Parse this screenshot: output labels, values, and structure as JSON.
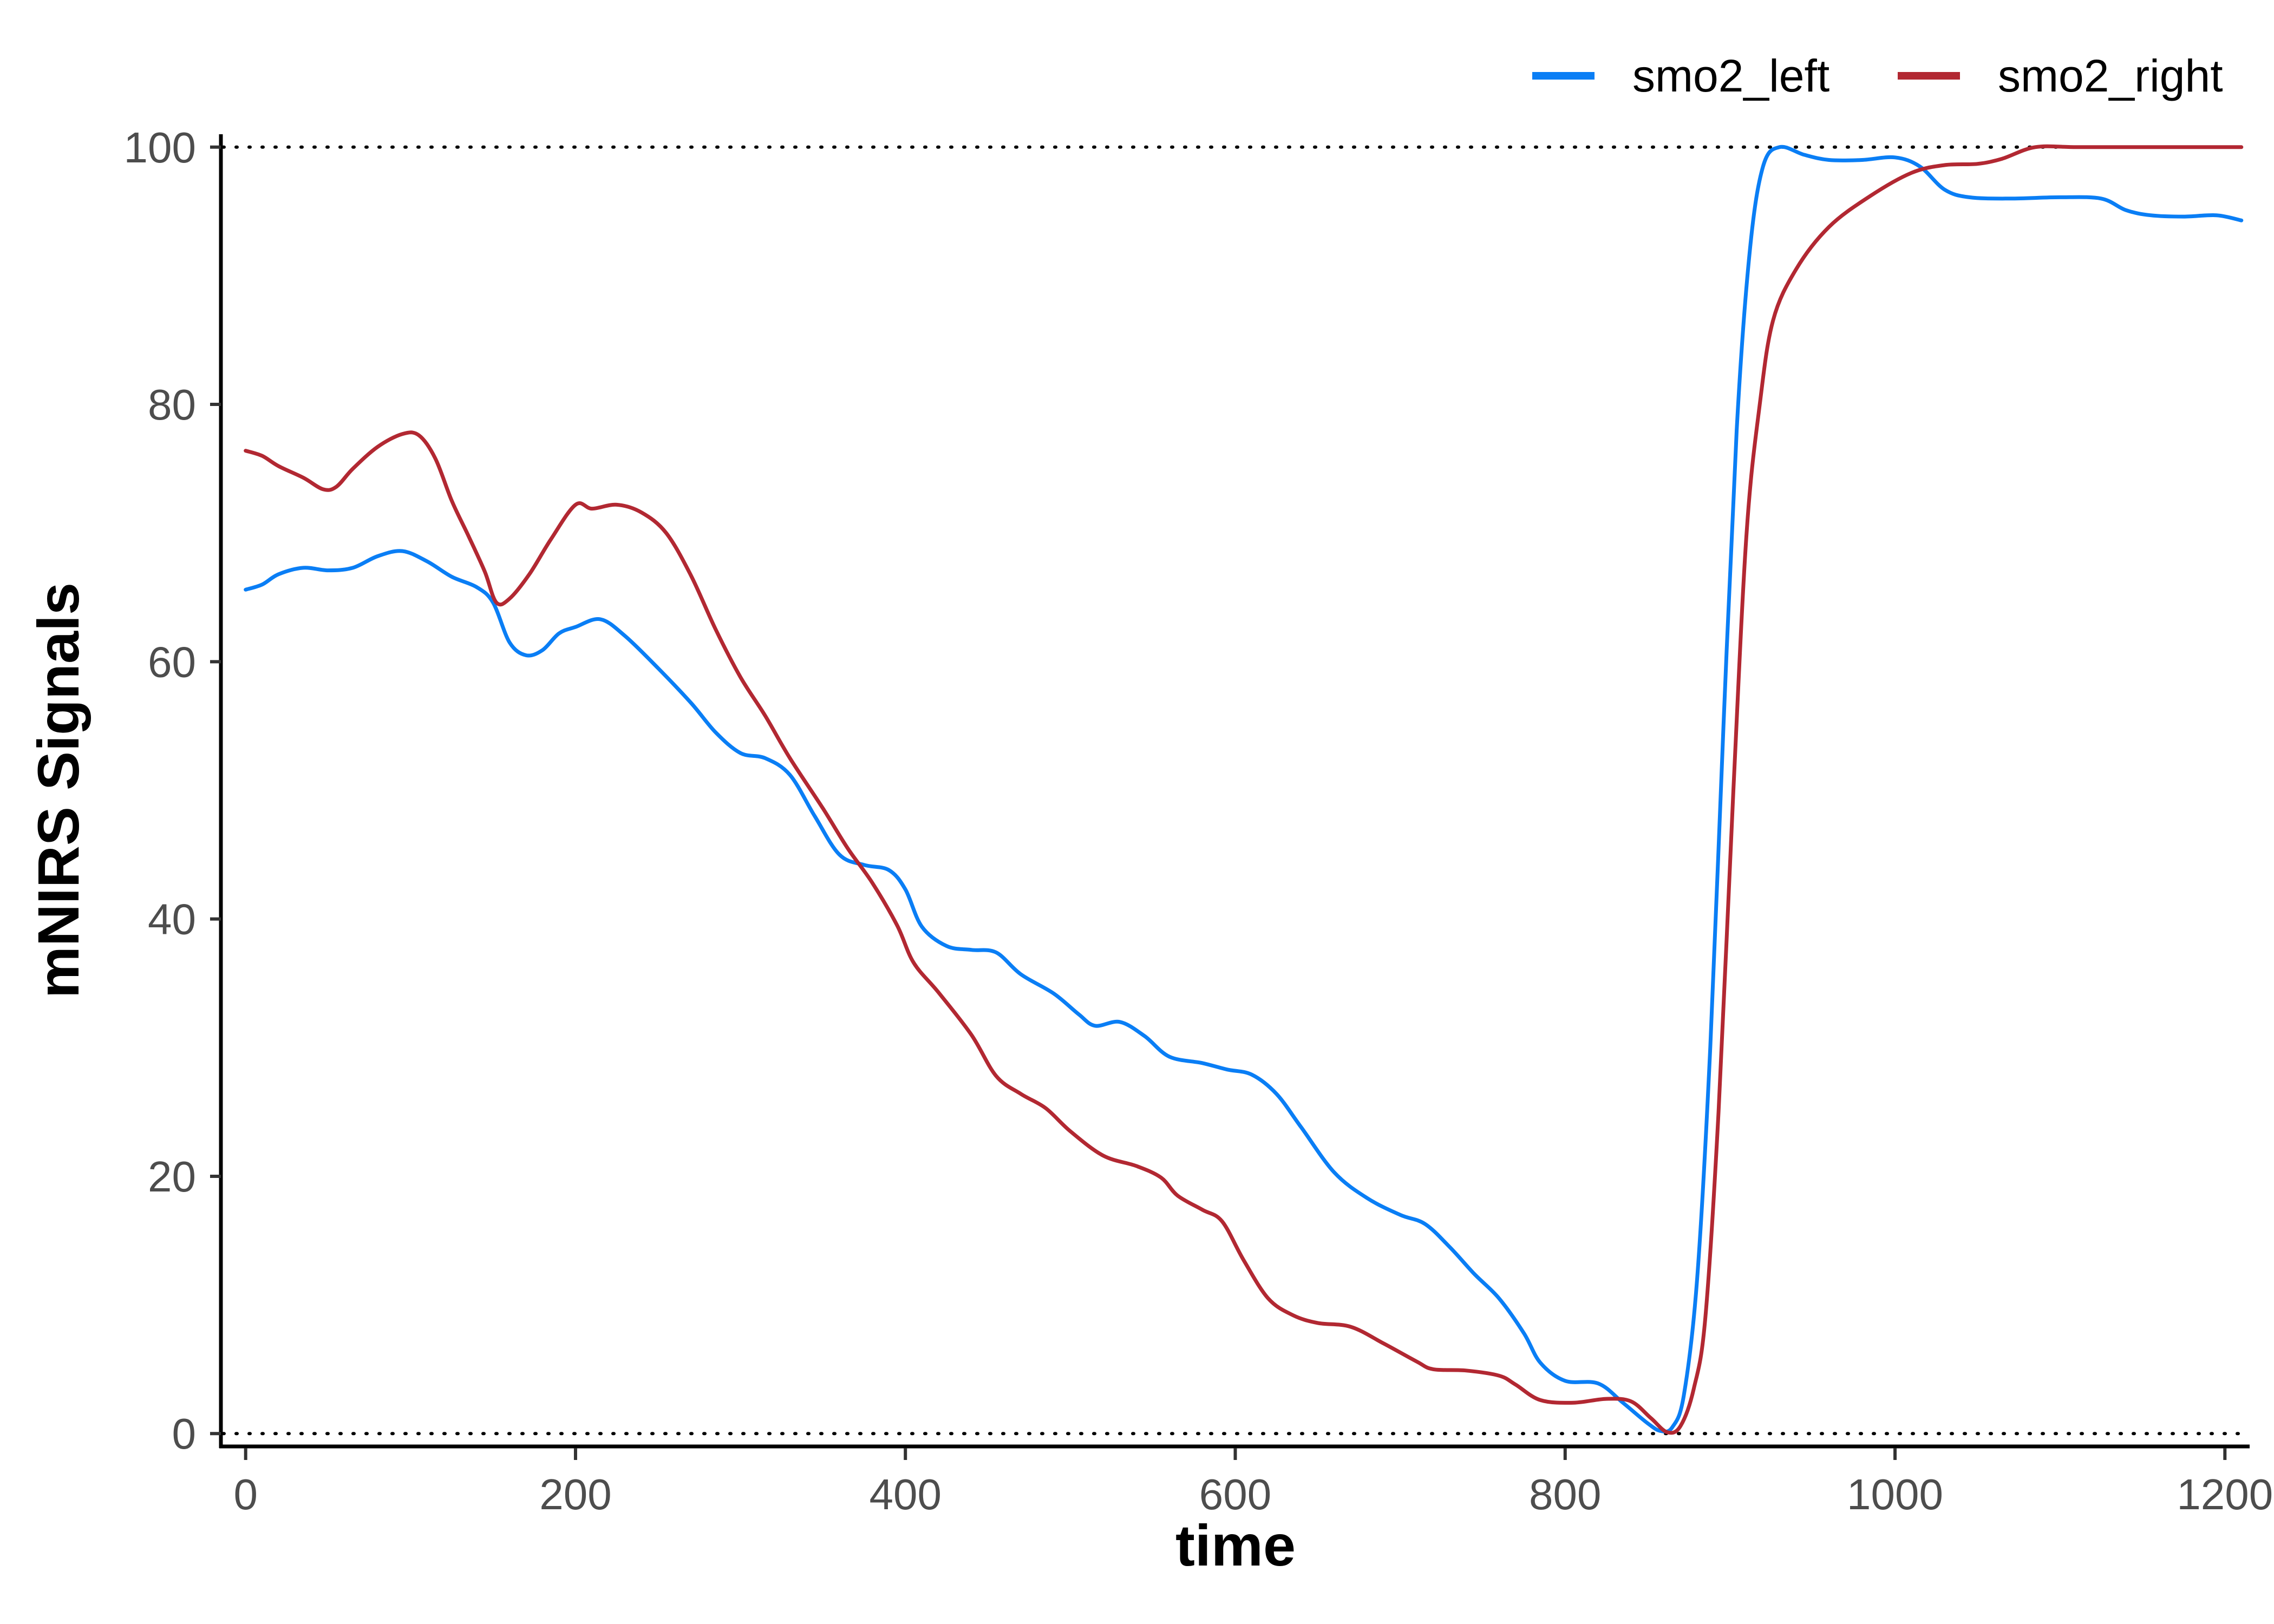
{
  "chart_data": {
    "type": "line",
    "xlabel": "time",
    "ylabel": "mNIRS Signals",
    "xlim": [
      -15,
      1215
    ],
    "ylim": [
      -1,
      101
    ],
    "x_ticks": [
      "0",
      "200",
      "400",
      "600",
      "800",
      "1000",
      "1200"
    ],
    "y_ticks": [
      "0",
      "20",
      "40",
      "60",
      "80",
      "100"
    ],
    "reference_lines": [
      0,
      100
    ],
    "reference_line_style": "dotted",
    "grid": false,
    "legend_position": "top-right",
    "series": [
      {
        "name": "smo2_left",
        "color": "#0a7ef5",
        "points": [
          [
            0,
            65.6
          ],
          [
            10,
            66.0
          ],
          [
            20,
            66.8
          ],
          [
            35,
            67.3
          ],
          [
            50,
            67.1
          ],
          [
            65,
            67.3
          ],
          [
            80,
            68.2
          ],
          [
            95,
            68.6
          ],
          [
            110,
            67.8
          ],
          [
            125,
            66.6
          ],
          [
            140,
            65.8
          ],
          [
            150,
            64.6
          ],
          [
            160,
            61.5
          ],
          [
            170,
            60.5
          ],
          [
            180,
            60.9
          ],
          [
            190,
            62.2
          ],
          [
            200,
            62.7
          ],
          [
            215,
            63.3
          ],
          [
            230,
            62.0
          ],
          [
            250,
            59.5
          ],
          [
            270,
            56.8
          ],
          [
            285,
            54.5
          ],
          [
            300,
            52.9
          ],
          [
            315,
            52.5
          ],
          [
            330,
            51.2
          ],
          [
            345,
            48.0
          ],
          [
            360,
            45.0
          ],
          [
            375,
            44.2
          ],
          [
            390,
            43.8
          ],
          [
            400,
            42.3
          ],
          [
            410,
            39.4
          ],
          [
            425,
            37.9
          ],
          [
            440,
            37.6
          ],
          [
            455,
            37.4
          ],
          [
            470,
            35.7
          ],
          [
            490,
            34.2
          ],
          [
            505,
            32.6
          ],
          [
            515,
            31.7
          ],
          [
            530,
            32.0
          ],
          [
            545,
            30.9
          ],
          [
            560,
            29.3
          ],
          [
            580,
            28.8
          ],
          [
            595,
            28.3
          ],
          [
            610,
            27.9
          ],
          [
            625,
            26.4
          ],
          [
            640,
            23.8
          ],
          [
            660,
            20.3
          ],
          [
            680,
            18.3
          ],
          [
            700,
            17.0
          ],
          [
            715,
            16.3
          ],
          [
            730,
            14.5
          ],
          [
            745,
            12.4
          ],
          [
            760,
            10.5
          ],
          [
            775,
            7.8
          ],
          [
            785,
            5.5
          ],
          [
            800,
            4.1
          ],
          [
            820,
            3.9
          ],
          [
            835,
            2.4
          ],
          [
            850,
            0.8
          ],
          [
            858,
            0.2
          ],
          [
            865,
            0.5
          ],
          [
            872,
            3.0
          ],
          [
            880,
            12.0
          ],
          [
            888,
            30.0
          ],
          [
            896,
            55.0
          ],
          [
            904,
            78.0
          ],
          [
            912,
            92.0
          ],
          [
            920,
            98.5
          ],
          [
            930,
            100.0
          ],
          [
            945,
            99.4
          ],
          [
            960,
            99.0
          ],
          [
            980,
            99.0
          ],
          [
            1000,
            99.2
          ],
          [
            1015,
            98.5
          ],
          [
            1030,
            96.7
          ],
          [
            1045,
            96.1
          ],
          [
            1070,
            96.0
          ],
          [
            1100,
            96.1
          ],
          [
            1125,
            96.0
          ],
          [
            1140,
            95.1
          ],
          [
            1155,
            94.7
          ],
          [
            1175,
            94.6
          ],
          [
            1195,
            94.7
          ],
          [
            1210,
            94.3
          ]
        ]
      },
      {
        "name": "smo2_right",
        "color": "#b22832",
        "points": [
          [
            0,
            76.4
          ],
          [
            10,
            76.0
          ],
          [
            20,
            75.2
          ],
          [
            35,
            74.3
          ],
          [
            47,
            73.4
          ],
          [
            55,
            73.6
          ],
          [
            65,
            75.0
          ],
          [
            80,
            76.7
          ],
          [
            95,
            77.7
          ],
          [
            105,
            77.6
          ],
          [
            115,
            75.8
          ],
          [
            125,
            72.5
          ],
          [
            135,
            69.8
          ],
          [
            145,
            67.0
          ],
          [
            152,
            64.6
          ],
          [
            160,
            64.9
          ],
          [
            172,
            66.8
          ],
          [
            185,
            69.5
          ],
          [
            200,
            72.2
          ],
          [
            210,
            71.9
          ],
          [
            225,
            72.2
          ],
          [
            240,
            71.6
          ],
          [
            255,
            70.0
          ],
          [
            270,
            66.7
          ],
          [
            285,
            62.5
          ],
          [
            300,
            58.8
          ],
          [
            315,
            55.8
          ],
          [
            330,
            52.5
          ],
          [
            350,
            48.6
          ],
          [
            365,
            45.5
          ],
          [
            380,
            42.8
          ],
          [
            395,
            39.5
          ],
          [
            405,
            36.6
          ],
          [
            420,
            34.3
          ],
          [
            440,
            31.0
          ],
          [
            455,
            27.8
          ],
          [
            470,
            26.4
          ],
          [
            485,
            25.3
          ],
          [
            500,
            23.5
          ],
          [
            520,
            21.6
          ],
          [
            540,
            20.8
          ],
          [
            555,
            19.9
          ],
          [
            565,
            18.5
          ],
          [
            580,
            17.4
          ],
          [
            592,
            16.5
          ],
          [
            605,
            13.5
          ],
          [
            620,
            10.5
          ],
          [
            635,
            9.2
          ],
          [
            650,
            8.6
          ],
          [
            670,
            8.3
          ],
          [
            690,
            7.0
          ],
          [
            710,
            5.6
          ],
          [
            720,
            5.0
          ],
          [
            740,
            4.9
          ],
          [
            760,
            4.5
          ],
          [
            770,
            3.8
          ],
          [
            785,
            2.6
          ],
          [
            805,
            2.4
          ],
          [
            825,
            2.7
          ],
          [
            840,
            2.5
          ],
          [
            852,
            1.2
          ],
          [
            862,
            0.1
          ],
          [
            870,
            0.6
          ],
          [
            878,
            3.5
          ],
          [
            885,
            9.0
          ],
          [
            893,
            25.0
          ],
          [
            902,
            50.0
          ],
          [
            910,
            70.0
          ],
          [
            918,
            80.0
          ],
          [
            926,
            86.5
          ],
          [
            940,
            90.5
          ],
          [
            960,
            93.8
          ],
          [
            985,
            96.2
          ],
          [
            1010,
            98.0
          ],
          [
            1030,
            98.6
          ],
          [
            1050,
            98.7
          ],
          [
            1065,
            99.1
          ],
          [
            1085,
            100.0
          ],
          [
            1110,
            100.0
          ],
          [
            1150,
            100.0
          ],
          [
            1190,
            100.0
          ],
          [
            1210,
            100.0
          ]
        ]
      }
    ]
  }
}
